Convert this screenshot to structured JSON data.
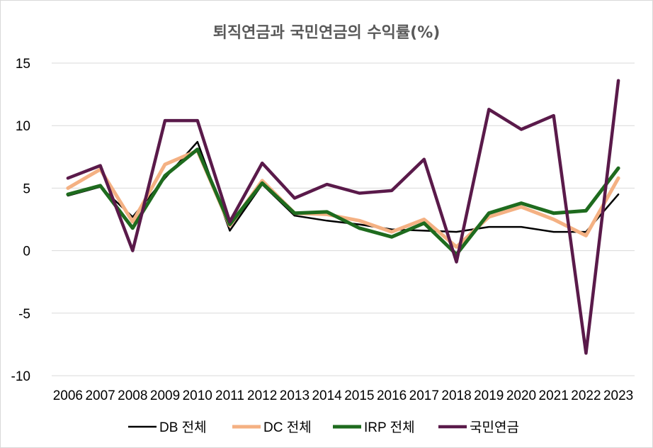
{
  "chart_data": {
    "type": "line",
    "title": "퇴직연금과 국민연금의 수익률(%)",
    "xlabel": "",
    "ylabel": "",
    "categories": [
      "2006",
      "2007",
      "2008",
      "2009",
      "2010",
      "2011",
      "2012",
      "2013",
      "2014",
      "2015",
      "2016",
      "2017",
      "2018",
      "2019",
      "2020",
      "2021",
      "2022",
      "2023"
    ],
    "yticks": [
      "15",
      "10",
      "5",
      "0",
      "-5",
      "-10"
    ],
    "ylim": [
      -10,
      15
    ],
    "grid": true,
    "legend_position": "bottom",
    "series": [
      {
        "name": "DB 전체",
        "color": "#000000",
        "values": [
          4.4,
          5.1,
          2.7,
          5.8,
          8.7,
          1.6,
          5.3,
          2.8,
          2.4,
          2.1,
          1.7,
          1.6,
          1.5,
          1.9,
          1.9,
          1.5,
          1.5,
          4.5
        ]
      },
      {
        "name": "DC 전체",
        "color": "#f4b183",
        "values": [
          5.0,
          6.5,
          2.3,
          6.9,
          8.0,
          2.0,
          5.6,
          3.0,
          2.9,
          2.4,
          1.5,
          2.5,
          0.3,
          2.7,
          3.5,
          2.5,
          1.2,
          5.8
        ]
      },
      {
        "name": "IRP 전체",
        "color": "#1e6b1e",
        "values": [
          4.5,
          5.2,
          1.8,
          6.0,
          8.1,
          2.1,
          5.4,
          3.0,
          3.1,
          1.8,
          1.1,
          2.2,
          -0.3,
          3.0,
          3.8,
          3.0,
          3.2,
          6.6
        ]
      },
      {
        "name": "국민연금",
        "color": "#5a1a4a",
        "values": [
          5.8,
          6.8,
          0.0,
          10.4,
          10.4,
          2.3,
          7.0,
          4.2,
          5.3,
          4.6,
          4.8,
          7.3,
          -0.9,
          11.3,
          9.7,
          10.8,
          -8.2,
          13.6
        ]
      }
    ]
  }
}
